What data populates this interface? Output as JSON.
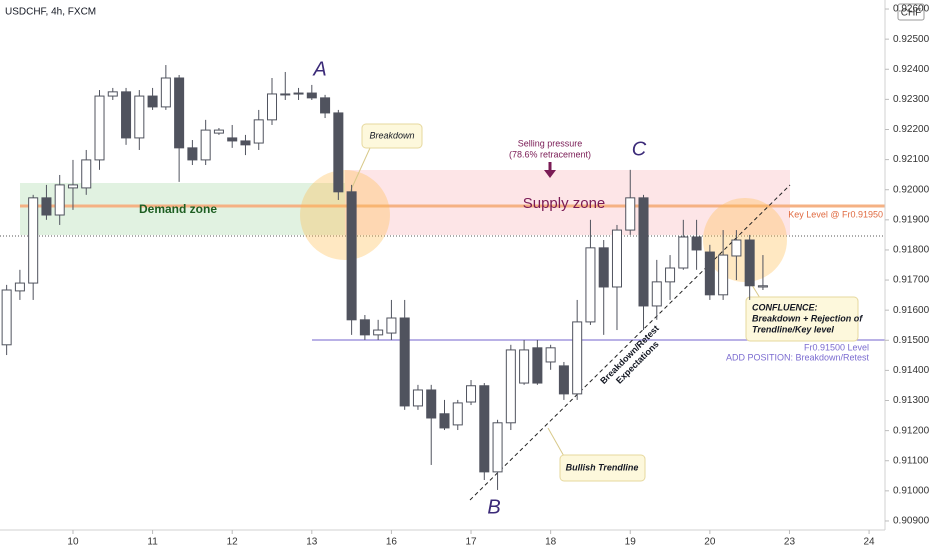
{
  "chart_data": {
    "type": "candlestick",
    "title": "USDCHF, 4h, FXCM",
    "currency": "CHF",
    "up_color": "#ffffff",
    "down_color": "#50535e",
    "x": [
      0,
      1,
      2,
      3,
      4,
      5,
      6,
      7,
      8,
      9,
      10,
      11,
      12,
      13,
      14,
      15,
      16,
      17,
      18,
      19,
      20,
      21,
      22,
      23,
      24,
      25,
      26,
      27,
      28,
      29,
      30,
      31,
      32,
      33,
      34,
      35,
      36,
      37,
      38,
      39,
      40,
      41,
      42,
      43,
      44,
      45,
      46,
      47,
      48,
      49,
      50,
      51,
      52,
      53,
      54,
      55,
      56,
      57
    ],
    "open": [
      0.91485,
      0.91664,
      0.9169,
      0.91973,
      0.91916,
      0.92006,
      0.92006,
      0.92099,
      0.92311,
      0.92325,
      0.92172,
      0.92311,
      0.92275,
      0.92371,
      0.92139,
      0.92099,
      0.92188,
      0.92172,
      0.92162,
      0.92155,
      0.92232,
      0.92315,
      0.92318,
      0.92321,
      0.92305,
      0.92255,
      0.91993,
      0.91568,
      0.91518,
      0.91524,
      0.91574,
      0.91282,
      0.91335,
      0.91256,
      0.91219,
      0.91295,
      0.91349,
      0.91063,
      0.91226,
      0.91358,
      0.91475,
      0.91428,
      0.91415,
      0.91322,
      0.91561,
      0.91807,
      0.91677,
      0.91866,
      0.91973,
      0.91614,
      0.91694,
      0.9174,
      0.91843,
      0.91793,
      0.91651,
      0.9178,
      0.91833,
      0.91677
    ],
    "close": [
      0.91667,
      0.9169,
      0.91973,
      0.91916,
      0.92016,
      0.92016,
      0.92099,
      0.92311,
      0.92325,
      0.92172,
      0.92311,
      0.92275,
      0.92371,
      0.92139,
      0.92099,
      0.92198,
      0.92198,
      0.92162,
      0.92149,
      0.92232,
      0.92318,
      0.92318,
      0.92321,
      0.92305,
      0.92255,
      0.91993,
      0.91568,
      0.91518,
      0.91534,
      0.91574,
      0.91282,
      0.91335,
      0.91242,
      0.91209,
      0.91292,
      0.91349,
      0.91063,
      0.91226,
      0.91468,
      0.91468,
      0.91358,
      0.91475,
      0.91322,
      0.91561,
      0.91807,
      0.91677,
      0.91866,
      0.91973,
      0.91614,
      0.91694,
      0.9174,
      0.91843,
      0.918,
      0.91651,
      0.91783,
      0.91833,
      0.91681,
      0.91681
    ],
    "high": [
      0.91684,
      0.91734,
      0.91983,
      0.92016,
      0.92049,
      0.92099,
      0.92132,
      0.92331,
      0.92338,
      0.92338,
      0.92331,
      0.92338,
      0.92414,
      0.92381,
      0.92165,
      0.92232,
      0.92205,
      0.92215,
      0.92182,
      0.92265,
      0.92371,
      0.92391,
      0.92338,
      0.92348,
      0.92315,
      0.92265,
      0.92016,
      0.91584,
      0.91568,
      0.91634,
      0.91634,
      0.91352,
      0.91352,
      0.91302,
      0.91302,
      0.91368,
      0.91358,
      0.91236,
      0.91485,
      0.91501,
      0.91501,
      0.91485,
      0.91428,
      0.91634,
      0.919,
      0.91833,
      0.91883,
      0.92066,
      0.91983,
      0.91767,
      0.91783,
      0.919,
      0.919,
      0.91817,
      0.91866,
      0.91866,
      0.9185,
      0.91783
    ],
    "low": [
      0.91451,
      0.91634,
      0.91634,
      0.919,
      0.91883,
      0.91933,
      0.91983,
      0.92066,
      0.92298,
      0.92149,
      0.92132,
      0.92265,
      0.92265,
      0.92026,
      0.92082,
      0.92082,
      0.92182,
      0.92139,
      0.92115,
      0.92132,
      0.92215,
      0.92298,
      0.92298,
      0.92298,
      0.92238,
      0.91966,
      0.91518,
      0.91501,
      0.91501,
      0.91501,
      0.91269,
      0.91269,
      0.91086,
      0.91202,
      0.91202,
      0.91285,
      0.91036,
      0.91003,
      0.91202,
      0.91352,
      0.91352,
      0.91402,
      0.91302,
      0.91302,
      0.91551,
      0.91518,
      0.91534,
      0.9185,
      0.91534,
      0.91568,
      0.91634,
      0.91734,
      0.91734,
      0.91634,
      0.91634,
      0.917,
      0.91634,
      0.91667
    ],
    "xlim": [
      -0.5,
      66.2
    ],
    "xticks": [
      {
        "value": 5,
        "label": "10"
      },
      {
        "value": 11,
        "label": "11"
      },
      {
        "value": 17,
        "label": "12"
      },
      {
        "value": 23,
        "label": "13"
      },
      {
        "value": 29,
        "label": "16"
      },
      {
        "value": 35,
        "label": "17"
      },
      {
        "value": 41,
        "label": "18"
      },
      {
        "value": 47,
        "label": "19"
      },
      {
        "value": 53,
        "label": "20"
      },
      {
        "value": 59,
        "label": "23"
      },
      {
        "value": 65,
        "label": "24"
      }
    ],
    "ylim": [
      0.9087,
      0.9263
    ],
    "yticks": [
      {
        "value": 0.909,
        "label": "0.90900"
      },
      {
        "value": 0.91,
        "label": "0.91000"
      },
      {
        "value": 0.911,
        "label": "0.91100"
      },
      {
        "value": 0.912,
        "label": "0.91200"
      },
      {
        "value": 0.913,
        "label": "0.91300"
      },
      {
        "value": 0.914,
        "label": "0.91400"
      },
      {
        "value": 0.915,
        "label": "0.91500"
      },
      {
        "value": 0.916,
        "label": "0.91600"
      },
      {
        "value": 0.917,
        "label": "0.91700"
      },
      {
        "value": 0.918,
        "label": "0.91800"
      },
      {
        "value": 0.919,
        "label": "0.91900"
      },
      {
        "value": 0.92,
        "label": "0.92000"
      },
      {
        "value": 0.921,
        "label": "0.92100"
      },
      {
        "value": 0.922,
        "label": "0.92200"
      },
      {
        "value": 0.923,
        "label": "0.92300"
      },
      {
        "value": 0.924,
        "label": "0.92400"
      },
      {
        "value": 0.925,
        "label": "0.92500"
      },
      {
        "value": 0.926,
        "label": "0.92600"
      }
    ],
    "annotations": {
      "point_a": "A",
      "point_b": "B",
      "point_c": "C",
      "demand_zone": "Demand zone",
      "supply_zone": "Supply zone",
      "breakdown": "Breakdown",
      "selling_pressure": [
        "Selling pressure",
        "(78.6% retracement)"
      ],
      "key_level": "Key Level @ Fr0.91950",
      "level_line": "Fr0.91500 Level",
      "add_position": "ADD POSITION: Breakdown/Retest",
      "confluence": [
        "CONFLUENCE:",
        "Breakdown + Rejection of",
        "Trendline/Key level"
      ],
      "bullish_trendline": "Bullish Trendline",
      "trendline_label": [
        "Breakdown/Retest",
        "Expectations"
      ]
    }
  }
}
